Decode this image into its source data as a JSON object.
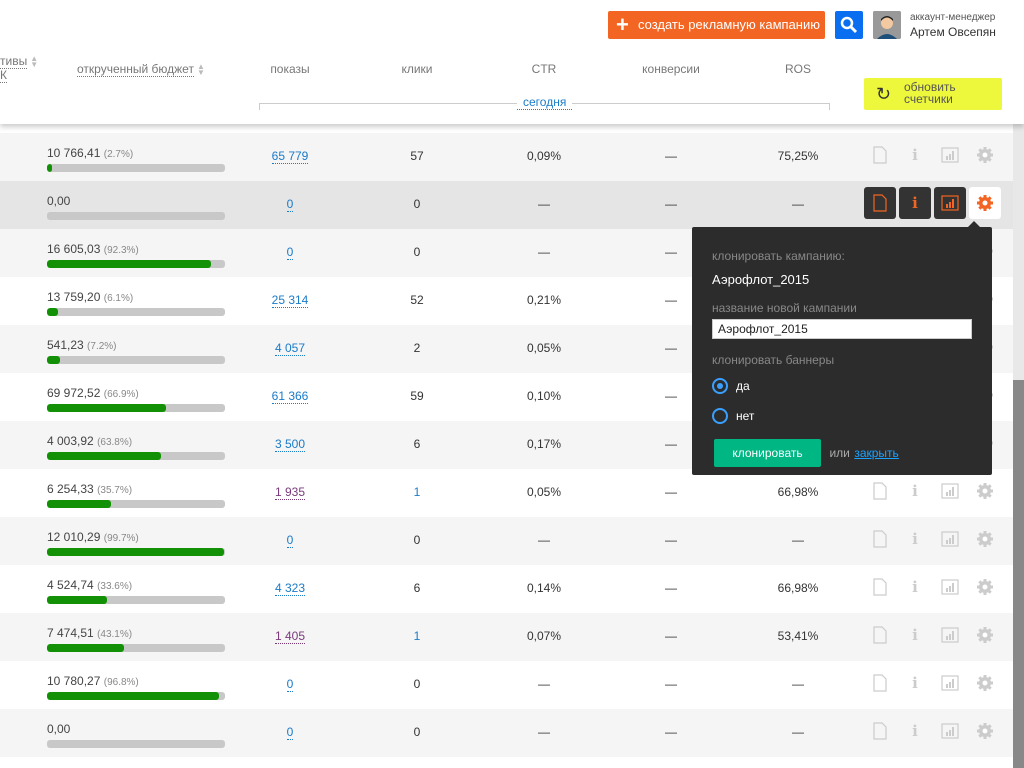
{
  "header": {
    "create_button": "создать рекламную кампанию",
    "account_role": "аккаунт-менеджер",
    "account_name": "Артем Овсепян",
    "refresh_button": "обновить счетчики",
    "columns": {
      "creatives_partial": "тивы",
      "creatives_partial2": "К",
      "budget": "открученный бюджет",
      "impressions": "показы",
      "clicks": "клики",
      "ctr": "CTR",
      "conversions": "конверсии",
      "ros": "ROS"
    },
    "period": "сегодня"
  },
  "rows": [
    {
      "budget": "10 766,41",
      "pct": "(2.7%)",
      "fill": 2.7,
      "impressions": "65 779",
      "imp_visited": false,
      "clicks": "57",
      "clicks_link": false,
      "ctr": "0,09%",
      "conv": "—",
      "ros": "75,25%"
    },
    {
      "budget": "0,00",
      "pct": "",
      "fill": 0,
      "impressions": "0",
      "imp_visited": false,
      "clicks": "0",
      "clicks_link": false,
      "ctr": "—",
      "conv": "—",
      "ros": "—"
    },
    {
      "budget": "16 605,03",
      "pct": "(92.3%)",
      "fill": 92.3,
      "impressions": "0",
      "imp_visited": false,
      "clicks": "0",
      "clicks_link": false,
      "ctr": "—",
      "conv": "—",
      "ros": ""
    },
    {
      "budget": "13 759,20",
      "pct": "(6.1%)",
      "fill": 6.1,
      "impressions": "25 314",
      "imp_visited": false,
      "clicks": "52",
      "clicks_link": false,
      "ctr": "0,21%",
      "conv": "—",
      "ros": ""
    },
    {
      "budget": "541,23",
      "pct": "(7.2%)",
      "fill": 7.2,
      "impressions": "4 057",
      "imp_visited": false,
      "clicks": "2",
      "clicks_link": false,
      "ctr": "0,05%",
      "conv": "—",
      "ros": ""
    },
    {
      "budget": "69 972,52",
      "pct": "(66.9%)",
      "fill": 66.9,
      "impressions": "61 366",
      "imp_visited": false,
      "clicks": "59",
      "clicks_link": false,
      "ctr": "0,10%",
      "conv": "—",
      "ros": ""
    },
    {
      "budget": "4 003,92",
      "pct": "(63.8%)",
      "fill": 63.8,
      "impressions": "3 500",
      "imp_visited": false,
      "clicks": "6",
      "clicks_link": false,
      "ctr": "0,17%",
      "conv": "—",
      "ros": ""
    },
    {
      "budget": "6 254,33",
      "pct": "(35.7%)",
      "fill": 35.7,
      "impressions": "1 935",
      "imp_visited": true,
      "clicks": "1",
      "clicks_link": true,
      "ctr": "0,05%",
      "conv": "—",
      "ros": "66,98%"
    },
    {
      "budget": "12 010,29",
      "pct": "(99.7%)",
      "fill": 99.7,
      "impressions": "0",
      "imp_visited": false,
      "clicks": "0",
      "clicks_link": false,
      "ctr": "—",
      "conv": "—",
      "ros": "—"
    },
    {
      "budget": "4 524,74",
      "pct": "(33.6%)",
      "fill": 33.6,
      "impressions": "4 323",
      "imp_visited": false,
      "clicks": "6",
      "clicks_link": false,
      "ctr": "0,14%",
      "conv": "—",
      "ros": "66,98%"
    },
    {
      "budget": "7 474,51",
      "pct": "(43.1%)",
      "fill": 43.1,
      "impressions": "1 405",
      "imp_visited": true,
      "clicks": "1",
      "clicks_link": true,
      "ctr": "0,07%",
      "conv": "—",
      "ros": "53,41%"
    },
    {
      "budget": "10 780,27",
      "pct": "(96.8%)",
      "fill": 96.8,
      "impressions": "0",
      "imp_visited": false,
      "clicks": "0",
      "clicks_link": false,
      "ctr": "—",
      "conv": "—",
      "ros": "—"
    },
    {
      "budget": "0,00",
      "pct": "",
      "fill": 0,
      "impressions": "0",
      "imp_visited": false,
      "clicks": "0",
      "clicks_link": false,
      "ctr": "—",
      "conv": "—",
      "ros": "—"
    }
  ],
  "row_icons": [
    "file-icon",
    "info-icon",
    "stats-icon",
    "gear-icon"
  ],
  "popup": {
    "clone_label": "клонировать кампанию:",
    "campaign_name": "Аэрофлот_2015",
    "new_name_label": "название новой кампании",
    "new_name_value": "Аэрофлот_2015",
    "banners_label": "клонировать баннеры",
    "option_yes": "да",
    "option_no": "нет",
    "selected": "да",
    "clone_button": "клонировать",
    "or": "или",
    "close_link": "закрыть"
  },
  "colors": {
    "accent": "#f26522",
    "search": "#0a6ef0",
    "refresh": "#edf73b",
    "progress": "#139106",
    "clone": "#00b683",
    "link": "#1a7bc9"
  }
}
